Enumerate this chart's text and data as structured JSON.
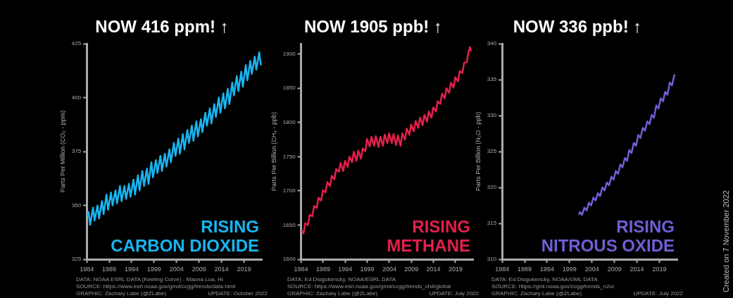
{
  "chart_data": [
    {
      "type": "line",
      "title": "NOW 416 ppm! ↑",
      "ylabel": "Parts Per Million (CO₂ - ppm)",
      "xlim": [
        1984,
        2023
      ],
      "xticks": [
        1984,
        1989,
        1994,
        1999,
        2004,
        2009,
        2014,
        2019
      ],
      "ylim": [
        325,
        425
      ],
      "yticks": [
        325,
        350,
        375,
        400,
        425
      ],
      "grid": false,
      "legend": false,
      "marker": "none",
      "line_style": "solid",
      "series": [
        {
          "color": "#19b5f0",
          "x": [
            1984.1,
            1984.4,
            1984.75,
            1985.4,
            1985.75,
            1986.4,
            1986.75,
            1987.4,
            1987.75,
            1988.4,
            1988.75,
            1989.4,
            1989.75,
            1990.4,
            1990.75,
            1991.4,
            1991.75,
            1992.4,
            1992.75,
            1993.4,
            1993.75,
            1994.4,
            1994.75,
            1995.4,
            1995.75,
            1996.4,
            1996.75,
            1997.4,
            1997.75,
            1998.4,
            1998.75,
            1999.4,
            1999.75,
            2000.4,
            2000.75,
            2001.4,
            2001.75,
            2002.4,
            2002.75,
            2003.4,
            2003.75,
            2004.4,
            2004.75,
            2005.4,
            2005.75,
            2006.4,
            2006.75,
            2007.4,
            2007.75,
            2008.4,
            2008.75,
            2009.4,
            2009.75,
            2010.4,
            2010.75,
            2011.4,
            2011.75,
            2012.4,
            2012.75,
            2013.4,
            2013.75,
            2014.4,
            2014.75,
            2015.4,
            2015.75,
            2016.4,
            2016.75,
            2017.4,
            2017.75,
            2018.4,
            2018.75,
            2019.4,
            2019.75,
            2020.4,
            2020.75,
            2021.4,
            2021.75,
            2022.4,
            2022.75
          ],
          "values": [
            345,
            347,
            341,
            349,
            343,
            350,
            344,
            352,
            346,
            355,
            348,
            356,
            350,
            357,
            351,
            359,
            352,
            359,
            353,
            360,
            354,
            362,
            355,
            364,
            357,
            366,
            359,
            367,
            360,
            370,
            363,
            371,
            365,
            373,
            366,
            374,
            368,
            376,
            370,
            379,
            373,
            381,
            374,
            383,
            376,
            385,
            379,
            387,
            380,
            389,
            382,
            390,
            384,
            393,
            387,
            395,
            388,
            397,
            391,
            400,
            393,
            402,
            395,
            404,
            397,
            407,
            401,
            410,
            403,
            412,
            405,
            415,
            408,
            417,
            411,
            419,
            413,
            421,
            415
          ]
        }
      ],
      "annotations": [
        "RISING\nCARBON DIOXIDE",
        "DATA: NOAA ESRL DATA (Keeling Curve) - Mauna Loa, HI",
        "GRAPHIC: Zachary Labe (@ZLabe)",
        "SOURCE: https://www.esrl.noaa.gov/gmd/ccgg/trends/data.html",
        "UPDATE: October 2022"
      ]
    },
    {
      "type": "line",
      "title": "NOW 1905 ppb! ↑",
      "ylabel": "Parts Per Billion (CH₄ - ppb)",
      "xlim": [
        1984,
        2023
      ],
      "xticks": [
        1984,
        1989,
        1994,
        1999,
        2004,
        2009,
        2014,
        2019
      ],
      "ylim": [
        1600,
        1915
      ],
      "yticks": [
        1600,
        1650,
        1700,
        1750,
        1800,
        1850,
        1900
      ],
      "grid": false,
      "legend": false,
      "marker": "none",
      "line_style": "solid",
      "series": [
        {
          "color": "#e3204b",
          "x": [
            1984.1,
            1984.55,
            1984.95,
            1985.55,
            1985.95,
            1986.55,
            1986.95,
            1987.55,
            1987.95,
            1988.55,
            1988.95,
            1989.55,
            1989.95,
            1990.55,
            1990.95,
            1991.55,
            1991.95,
            1992.55,
            1992.95,
            1993.55,
            1993.95,
            1994.55,
            1994.95,
            1995.55,
            1995.95,
            1996.55,
            1996.95,
            1997.55,
            1997.95,
            1998.55,
            1998.95,
            1999.55,
            1999.95,
            2000.55,
            2000.95,
            2001.55,
            2001.95,
            2002.55,
            2002.95,
            2003.55,
            2003.95,
            2004.55,
            2004.95,
            2005.55,
            2005.95,
            2006.55,
            2006.95,
            2007.55,
            2007.95,
            2008.55,
            2008.95,
            2009.55,
            2009.95,
            2010.55,
            2010.95,
            2011.55,
            2011.95,
            2012.55,
            2012.95,
            2013.55,
            2013.95,
            2014.55,
            2014.95,
            2015.55,
            2015.95,
            2016.55,
            2016.95,
            2017.55,
            2017.95,
            2018.55,
            2018.95,
            2019.55,
            2019.95,
            2020.55,
            2020.95,
            2021.55,
            2021.95,
            2022.3,
            2022.5
          ],
          "values": [
            1642,
            1638,
            1653,
            1650,
            1665,
            1663,
            1678,
            1675,
            1690,
            1686,
            1701,
            1698,
            1713,
            1707,
            1722,
            1717,
            1732,
            1728,
            1741,
            1729,
            1744,
            1735,
            1750,
            1742,
            1757,
            1744,
            1759,
            1747,
            1762,
            1758,
            1776,
            1765,
            1779,
            1766,
            1780,
            1764,
            1779,
            1766,
            1782,
            1770,
            1784,
            1770,
            1783,
            1767,
            1781,
            1766,
            1784,
            1775,
            1791,
            1782,
            1797,
            1787,
            1802,
            1792,
            1807,
            1796,
            1811,
            1801,
            1816,
            1807,
            1822,
            1816,
            1831,
            1827,
            1842,
            1835,
            1850,
            1843,
            1858,
            1851,
            1866,
            1860,
            1875,
            1872,
            1887,
            1888,
            1903,
            1910,
            1904
          ]
        }
      ],
      "annotations": [
        "RISING\nMETHANE",
        "DATA: Ed Dlugokencky, NOAA/ESRL DATA",
        "GRAPHIC: Zachary Labe (@ZLabe)",
        "SOURCE: https://www.esrl.noaa.gov/gmd/ccgg/trends_ch4/global",
        "UPDATE: July 2022"
      ]
    },
    {
      "type": "line",
      "title": "NOW 336 ppb! ↑",
      "ylabel": "Parts Per Billion (N₂O - ppb)",
      "xlim": [
        1984,
        2023
      ],
      "xticks": [
        1984,
        1989,
        1994,
        1999,
        2004,
        2009,
        2014,
        2019
      ],
      "ylim": [
        310,
        340
      ],
      "yticks": [
        310,
        315,
        320,
        325,
        330,
        335,
        340
      ],
      "grid": false,
      "legend": false,
      "marker": "none",
      "line_style": "solid",
      "series": [
        {
          "color": "#6e5fd6",
          "x": [
            2001.1,
            2001.3,
            2001.8,
            2002.3,
            2002.8,
            2003.3,
            2003.8,
            2004.3,
            2004.8,
            2005.3,
            2005.8,
            2006.3,
            2006.8,
            2007.3,
            2007.8,
            2008.3,
            2008.8,
            2009.3,
            2009.8,
            2010.3,
            2010.8,
            2011.3,
            2011.8,
            2012.3,
            2012.8,
            2013.3,
            2013.8,
            2014.3,
            2014.8,
            2015.3,
            2015.8,
            2016.3,
            2016.8,
            2017.3,
            2017.8,
            2018.3,
            2018.8,
            2019.3,
            2019.8,
            2020.3,
            2020.8,
            2021.3,
            2021.8,
            2022.3,
            2022.5
          ],
          "values": [
            316.2,
            316.6,
            316.2,
            317.2,
            316.8,
            317.9,
            317.5,
            318.6,
            318.2,
            319.2,
            318.8,
            320.0,
            319.6,
            320.7,
            320.3,
            321.5,
            321.1,
            322.3,
            321.9,
            323.2,
            322.8,
            324.1,
            323.7,
            325.2,
            324.8,
            326.2,
            325.8,
            327.3,
            326.9,
            328.3,
            327.9,
            329.2,
            328.8,
            330.1,
            329.7,
            331.4,
            331.0,
            332.4,
            332.0,
            333.3,
            332.9,
            334.6,
            334.2,
            335.6,
            335.7
          ]
        }
      ],
      "annotations": [
        "RISING\nNITROUS OXIDE",
        "DATA: Ed Dlugokencky, NOAA/GML DATA",
        "GRAPHIC: Zachary Labe (@ZLabe)",
        "SOURCE: https://gml.noaa.gov/ccgg/trends_n2o/",
        "UPDATE: July 2022",
        "Created on 7 November 2022"
      ]
    }
  ]
}
